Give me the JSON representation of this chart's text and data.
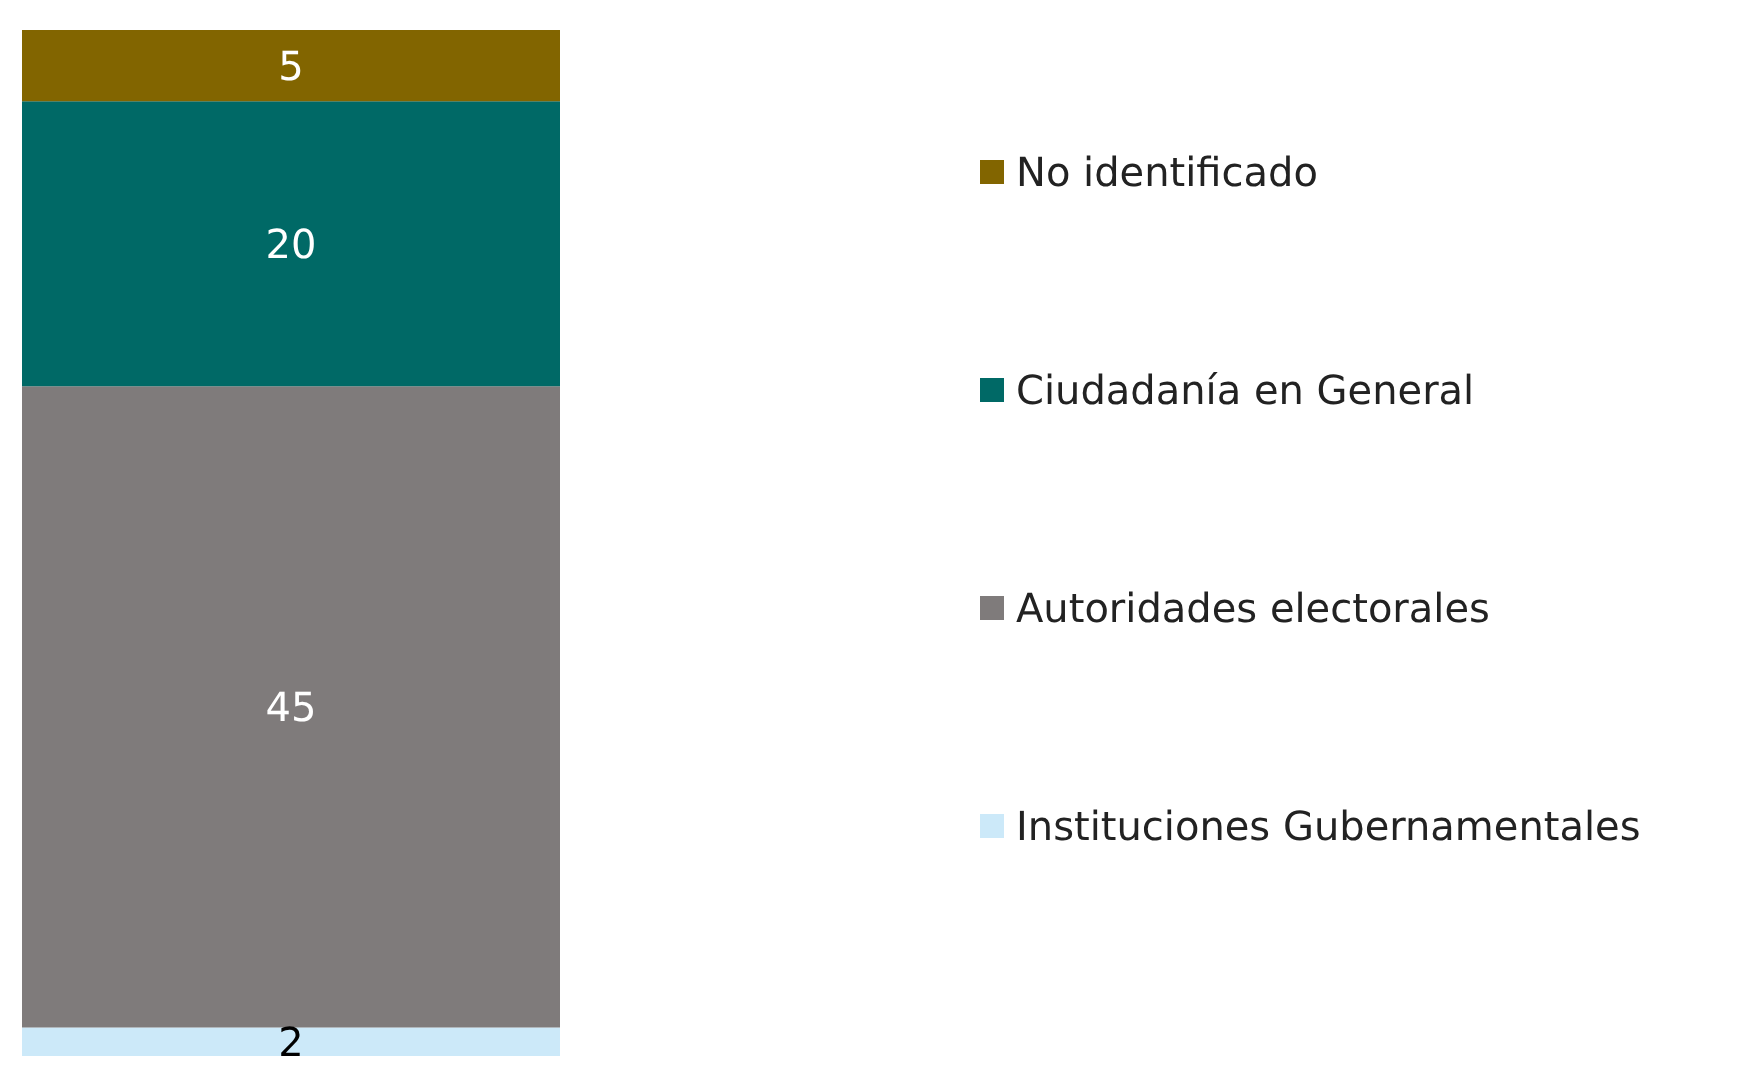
{
  "chart_data": {
    "type": "bar",
    "stacked": true,
    "categories": [
      null
    ],
    "data_labels": true,
    "legend": "right",
    "series": [
      {
        "name": "Instituciones Gubernamentales",
        "color": "#cce9f9",
        "values": [
          2
        ]
      },
      {
        "name": "Autoridades electorales",
        "color": "#7f7b7b",
        "values": [
          45
        ]
      },
      {
        "name": "Ciudadanía en General",
        "color": "#006966",
        "values": [
          20
        ]
      },
      {
        "name": "No identificado",
        "color": "#826500",
        "values": [
          5
        ]
      }
    ]
  }
}
